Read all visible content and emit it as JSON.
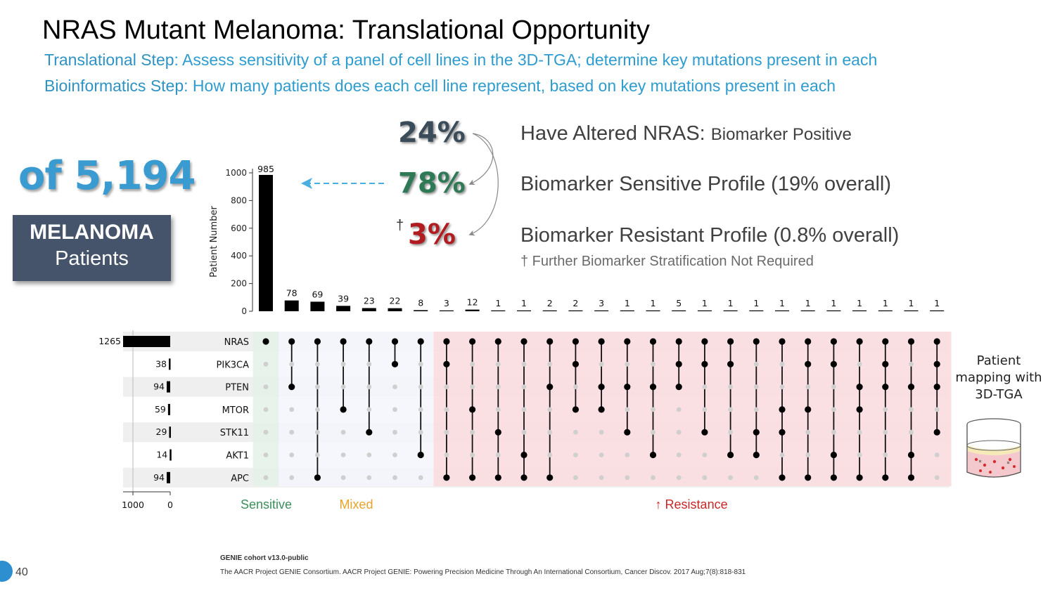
{
  "title": "NRAS Mutant Melanoma: Translational Opportunity",
  "translational": {
    "label": "Translational Step",
    "text": ": Assess sensitivity of a panel of cell lines in the 3D-TGA; determine key mutations present in each"
  },
  "bioinformatics": {
    "label": "Bioinformatics Step",
    "text": ": How many patients does each cell line represent, based on key mutations present in each"
  },
  "cohort": {
    "count": "of 5,194",
    "line1": "MELANOMA",
    "line2": "Patients"
  },
  "stats": [
    {
      "pct": "24%",
      "main": "Have Altered NRAS: ",
      "small": "Biomarker Positive"
    },
    {
      "pct": "78%",
      "main": "Biomarker Sensitive Profile (19% overall)",
      "small": ""
    },
    {
      "pct": "3%",
      "dagger": "†",
      "main": "Biomarker Resistant Profile (0.8% overall)",
      "small": ""
    }
  ],
  "footnote": "† Further Biomarker Stratification Not Required",
  "side_panel": {
    "line1": "Patient",
    "line2": "mapping with",
    "line3": "3D-TGA"
  },
  "citation": {
    "bold": "GENIE cohort v13.0-public",
    "text": "The AACR Project GENIE Consortium. AACR Project GENIE: Powering Precision Medicine Through An International Consortium, Cancer Discov. 2017 Aug;7(8):818-831"
  },
  "page_number": "40",
  "colors": {
    "accent": "#2e9ccf",
    "sensitive": "#3a8f5c",
    "mixed": "#e8a32a",
    "resistance": "#c62828",
    "sensitive_bg": "#e3f1e7",
    "mixed_bg": "#f3f6fb",
    "resistance_bg": "#fbdde0"
  },
  "chart_data": {
    "type": "upset",
    "ylabel": "Patient Number",
    "ylim": [
      0,
      1000
    ],
    "yticks": [
      0,
      200,
      400,
      600,
      800,
      1000
    ],
    "set_size_ticks": [
      1000,
      0
    ],
    "sets": [
      {
        "name": "NRAS",
        "size": 1265
      },
      {
        "name": "PIK3CA",
        "size": 38
      },
      {
        "name": "PTEN",
        "size": 94
      },
      {
        "name": "MTOR",
        "size": 59
      },
      {
        "name": "STK11",
        "size": 29
      },
      {
        "name": "AKT1",
        "size": 14
      },
      {
        "name": "APC",
        "size": 94
      }
    ],
    "intersections": [
      {
        "value": 985,
        "members": [
          0
        ]
      },
      {
        "value": 78,
        "members": [
          0,
          2
        ]
      },
      {
        "value": 69,
        "members": [
          0,
          6
        ]
      },
      {
        "value": 39,
        "members": [
          0,
          3
        ]
      },
      {
        "value": 23,
        "members": [
          0,
          4
        ]
      },
      {
        "value": 22,
        "members": [
          0,
          1
        ]
      },
      {
        "value": 8,
        "members": [
          0,
          5
        ]
      },
      {
        "value": 3,
        "members": [
          0,
          1,
          6
        ]
      },
      {
        "value": 12,
        "members": [
          0,
          3,
          6
        ]
      },
      {
        "value": 1,
        "members": [
          0,
          4,
          6
        ]
      },
      {
        "value": 1,
        "members": [
          0,
          5,
          6
        ]
      },
      {
        "value": 2,
        "members": [
          0,
          2,
          6
        ]
      },
      {
        "value": 2,
        "members": [
          0,
          1,
          3
        ]
      },
      {
        "value": 3,
        "members": [
          0,
          2,
          3
        ]
      },
      {
        "value": 1,
        "members": [
          0,
          2,
          4
        ]
      },
      {
        "value": 1,
        "members": [
          0,
          2,
          5
        ]
      },
      {
        "value": 5,
        "members": [
          0,
          1,
          2
        ]
      },
      {
        "value": 1,
        "members": [
          0,
          1,
          4
        ]
      },
      {
        "value": 1,
        "members": [
          0,
          1,
          5
        ]
      },
      {
        "value": 1,
        "members": [
          0,
          4,
          5
        ]
      },
      {
        "value": 1,
        "members": [
          0,
          3,
          4,
          6
        ]
      },
      {
        "value": 1,
        "members": [
          0,
          1,
          3,
          6
        ]
      },
      {
        "value": 1,
        "members": [
          0,
          1,
          5,
          6
        ]
      },
      {
        "value": 1,
        "members": [
          0,
          2,
          3,
          6
        ]
      },
      {
        "value": 1,
        "members": [
          0,
          1,
          2,
          6
        ]
      },
      {
        "value": 1,
        "members": [
          0,
          2,
          5,
          6
        ]
      },
      {
        "value": 1,
        "members": [
          0,
          1,
          2,
          4
        ]
      }
    ],
    "groups": [
      {
        "label": "Sensitive",
        "count": 1
      },
      {
        "label": "Mixed",
        "count": 6
      },
      {
        "label": "↑ Resistance",
        "count": 20
      }
    ]
  }
}
